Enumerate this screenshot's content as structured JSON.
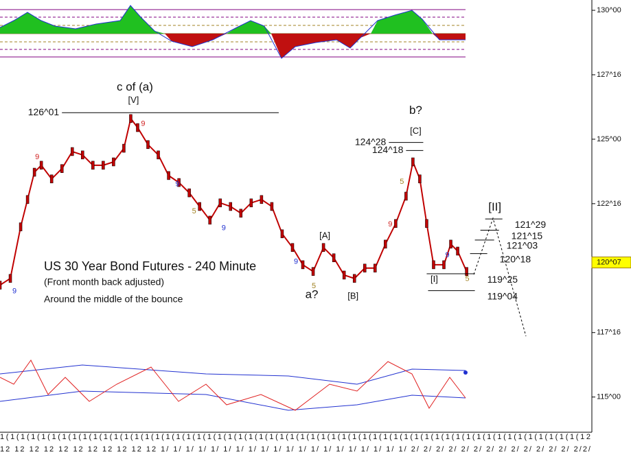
{
  "chart_data": {
    "type": "line",
    "title": "US 30 Year Bond Futures - 240 Minute",
    "subtitle": "(Front month back adjusted)",
    "annotation": "Around the middle of the bounce",
    "current_price": {
      "value": 120.22,
      "label": "120^07"
    },
    "x": [
      0,
      15,
      30,
      40,
      50,
      60,
      75,
      90,
      105,
      120,
      135,
      150,
      165,
      180,
      190,
      200,
      215,
      230,
      245,
      260,
      275,
      290,
      305,
      320,
      335,
      350,
      365,
      380,
      395,
      410,
      425,
      440,
      455,
      470,
      485,
      500,
      515,
      530,
      545,
      560,
      575,
      590,
      600,
      610,
      620,
      630,
      645,
      655,
      665,
      678
    ],
    "series": [
      {
        "color": "#c00000",
        "values": [
          119.34,
          119.6,
          121.6,
          122.66,
          123.72,
          123.99,
          123.46,
          123.86,
          124.52,
          124.39,
          123.99,
          123.99,
          124.12,
          124.65,
          125.8,
          125.45,
          124.79,
          124.39,
          123.59,
          123.32,
          122.92,
          122.39,
          121.86,
          122.53,
          122.39,
          122.13,
          122.53,
          122.66,
          122.39,
          121.33,
          120.8,
          120.13,
          119.87,
          120.8,
          120.4,
          119.73,
          119.6,
          120.0,
          120.0,
          120.93,
          121.73,
          122.79,
          124.12,
          123.46,
          121.73,
          120.13,
          120.13,
          120.93,
          120.66,
          119.87
        ]
      }
    ],
    "xlim": [
      0,
      860
    ],
    "ylim": [
      113.9,
      130.4
    ],
    "yticks": [
      {
        "value": 130,
        "label": "130^00"
      },
      {
        "value": 127.5,
        "label": "127^16"
      },
      {
        "value": 125,
        "label": "125^00"
      },
      {
        "value": 122.5,
        "label": "122^16"
      },
      {
        "value": 117.5,
        "label": "117^16"
      },
      {
        "value": 115,
        "label": "115^00"
      }
    ],
    "levels": [
      {
        "label": "126^01",
        "value": 126.03,
        "x1": 90,
        "x2": 405,
        "side": "left"
      },
      {
        "label": "124^28",
        "value": 124.875,
        "x1": 565,
        "x2": 615,
        "side": "left"
      },
      {
        "label": "124^18",
        "value": 124.5625,
        "x1": 590,
        "x2": 615,
        "side": "left"
      },
      {
        "label": "121^29",
        "value": 121.906,
        "x1": 705,
        "x2": 730,
        "side": "right"
      },
      {
        "label": "121^15",
        "value": 121.47,
        "x1": 698,
        "x2": 725,
        "side": "right"
      },
      {
        "label": "121^03",
        "value": 121.09,
        "x1": 690,
        "x2": 718,
        "side": "right"
      },
      {
        "label": "120^18",
        "value": 120.5625,
        "x1": 683,
        "x2": 708,
        "side": "right"
      },
      {
        "label": "119^25",
        "value": 119.78,
        "x1": 620,
        "x2": 690,
        "side": "right"
      },
      {
        "label": "119^04",
        "value": 119.125,
        "x1": 622,
        "x2": 690,
        "side": "right"
      }
    ],
    "wave_labels": [
      {
        "label": "c of (a)",
        "x": 196,
        "value": 127.0
      },
      {
        "label": "[V]",
        "x": 194,
        "value": 126.5
      },
      {
        "label": "b?",
        "x": 604,
        "value": 126.1
      },
      {
        "label": "[C]",
        "x": 604,
        "value": 125.3
      },
      {
        "label": "[A]",
        "x": 472,
        "value": 121.25
      },
      {
        "label": "a?",
        "x": 453,
        "value": 118.95
      },
      {
        "label": "[B]",
        "x": 513,
        "value": 118.9
      },
      {
        "label": "[I]",
        "x": 631,
        "value": 119.55
      },
      {
        "label": "[II]",
        "x": 719,
        "value": 122.35
      }
    ],
    "counts": [
      {
        "label": "9",
        "x": 54,
        "value": 124.3,
        "color": "#d02020"
      },
      {
        "label": "9",
        "x": 208,
        "value": 125.6,
        "color": "#d02020"
      },
      {
        "label": "9",
        "x": 258,
        "value": 123.25,
        "color": "#2030d0"
      },
      {
        "label": "5",
        "x": 282,
        "value": 122.2,
        "color": "#a08020"
      },
      {
        "label": "9",
        "x": 325,
        "value": 121.55,
        "color": "#2030d0"
      },
      {
        "label": "9",
        "x": 430,
        "value": 120.25,
        "color": "#2030d0"
      },
      {
        "label": "5",
        "x": 456,
        "value": 119.3,
        "color": "#a08020"
      },
      {
        "label": "9",
        "x": 567,
        "value": 121.7,
        "color": "#d02020"
      },
      {
        "label": "5",
        "x": 584,
        "value": 123.35,
        "color": "#a08020"
      },
      {
        "label": "9",
        "x": 650,
        "value": 120.5,
        "color": "#2030d0"
      },
      {
        "label": "5",
        "x": 679,
        "value": 119.58,
        "color": "#a08020"
      },
      {
        "label": "9",
        "x": 21,
        "value": 119.1,
        "color": "#2030d0"
      }
    ],
    "x_axis_labels": [
      "1(1(1(1(1(1(1(1(1(1(1(1(1(1(1(1(1(1(1(1(1(1(1(1(1(1(1(1(1(1(1(1(1(1(1(1(1(1(1(1(1(1(1(1(1(1(1(1(1(1(1(1(1(1(1(1(12",
      "12 12 12 12 12 12 12 12 12 12 12 1/ 1/ 1/ 1/ 1/ 1/ 1/ 1/ 1/ 1/ 1/ 1/ 1/ 1/ 1/ 1/ 1/ 1/ 1/ 1/ 2/ 2/ 2/ 2/ 2/ 2/ 2/ 2/ 2/ 2/ 2/ 2/ 2/ 2/2/"
    ]
  }
}
